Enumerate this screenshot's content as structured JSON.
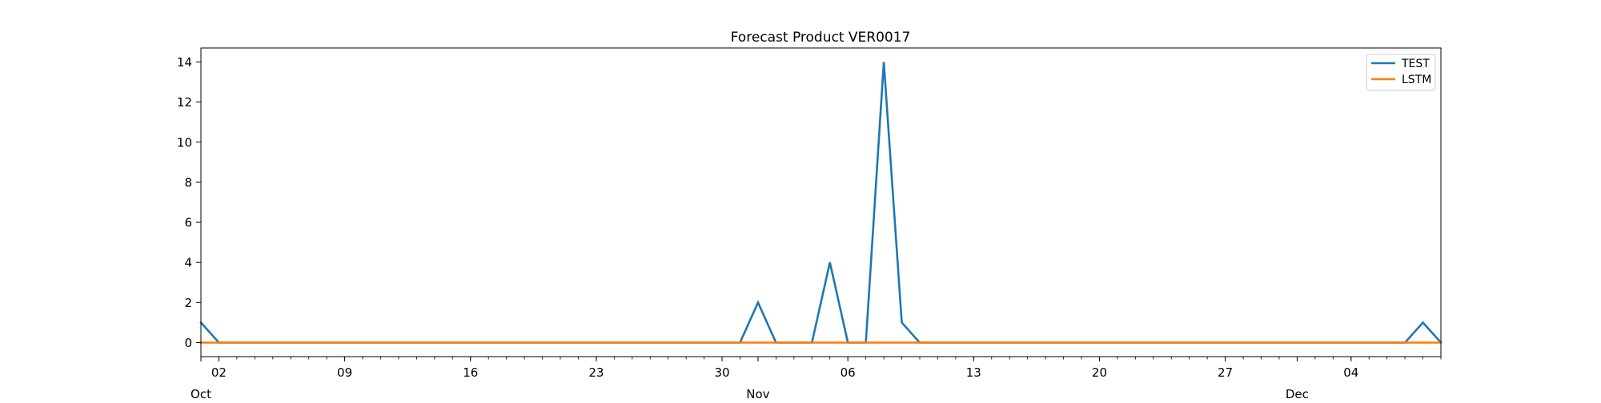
{
  "chart_data": {
    "type": "line",
    "title": "Forecast Product VER0017",
    "xlabel": "",
    "ylabel": "",
    "x_axis": {
      "type": "date",
      "start": "2023-10-01",
      "end": "2023-12-09",
      "major_ticks": [
        "2023-10-02",
        "2023-10-09",
        "2023-10-16",
        "2023-10-23",
        "2023-10-30",
        "2023-11-06",
        "2023-11-13",
        "2023-11-20",
        "2023-11-27",
        "2023-12-04"
      ],
      "major_tick_labels": [
        "02",
        "09",
        "16",
        "23",
        "30",
        "06",
        "13",
        "20",
        "27",
        "04"
      ],
      "month_ticks": [
        "2023-10-01",
        "2023-11-01",
        "2023-12-01"
      ],
      "month_labels": [
        "Oct",
        "Nov",
        "Dec"
      ]
    },
    "y_axis": {
      "ylim": [
        -0.7,
        14.7
      ],
      "ticks": [
        0,
        2,
        4,
        6,
        8,
        10,
        12,
        14
      ],
      "tick_labels": [
        "0",
        "2",
        "4",
        "6",
        "8",
        "10",
        "12",
        "14"
      ]
    },
    "grid": false,
    "legend": {
      "placement": "top-right",
      "entries": [
        "TEST",
        "LSTM"
      ]
    },
    "series": [
      {
        "name": "TEST",
        "color": "#1f77b4",
        "x": [
          "2023-10-01",
          "2023-10-02",
          "2023-10-03",
          "2023-10-04",
          "2023-10-05",
          "2023-10-06",
          "2023-10-07",
          "2023-10-08",
          "2023-10-09",
          "2023-10-10",
          "2023-10-11",
          "2023-10-12",
          "2023-10-13",
          "2023-10-14",
          "2023-10-15",
          "2023-10-16",
          "2023-10-17",
          "2023-10-18",
          "2023-10-19",
          "2023-10-20",
          "2023-10-21",
          "2023-10-22",
          "2023-10-23",
          "2023-10-24",
          "2023-10-25",
          "2023-10-26",
          "2023-10-27",
          "2023-10-28",
          "2023-10-29",
          "2023-10-30",
          "2023-10-31",
          "2023-11-01",
          "2023-11-02",
          "2023-11-03",
          "2023-11-04",
          "2023-11-05",
          "2023-11-06",
          "2023-11-07",
          "2023-11-08",
          "2023-11-09",
          "2023-11-10",
          "2023-11-11",
          "2023-11-12",
          "2023-11-13",
          "2023-11-14",
          "2023-11-15",
          "2023-11-16",
          "2023-11-17",
          "2023-11-18",
          "2023-11-19",
          "2023-11-20",
          "2023-11-21",
          "2023-11-22",
          "2023-11-23",
          "2023-11-24",
          "2023-11-25",
          "2023-11-26",
          "2023-11-27",
          "2023-11-28",
          "2023-11-29",
          "2023-11-30",
          "2023-12-01",
          "2023-12-02",
          "2023-12-03",
          "2023-12-04",
          "2023-12-05",
          "2023-12-06",
          "2023-12-07",
          "2023-12-08",
          "2023-12-09"
        ],
        "values": [
          1,
          0,
          0,
          0,
          0,
          0,
          0,
          0,
          0,
          0,
          0,
          0,
          0,
          0,
          0,
          0,
          0,
          0,
          0,
          0,
          0,
          0,
          0,
          0,
          0,
          0,
          0,
          0,
          0,
          0,
          0,
          2,
          0,
          0,
          0,
          4,
          0,
          0,
          14,
          1,
          0,
          0,
          0,
          0,
          0,
          0,
          0,
          0,
          0,
          0,
          0,
          0,
          0,
          0,
          0,
          0,
          0,
          0,
          0,
          0,
          0,
          0,
          0,
          0,
          0,
          0,
          0,
          0,
          1,
          0
        ]
      },
      {
        "name": "LSTM",
        "color": "#ff7f0e",
        "x": [
          "2023-10-01",
          "2023-12-09"
        ],
        "values": [
          0,
          0
        ]
      }
    ]
  }
}
